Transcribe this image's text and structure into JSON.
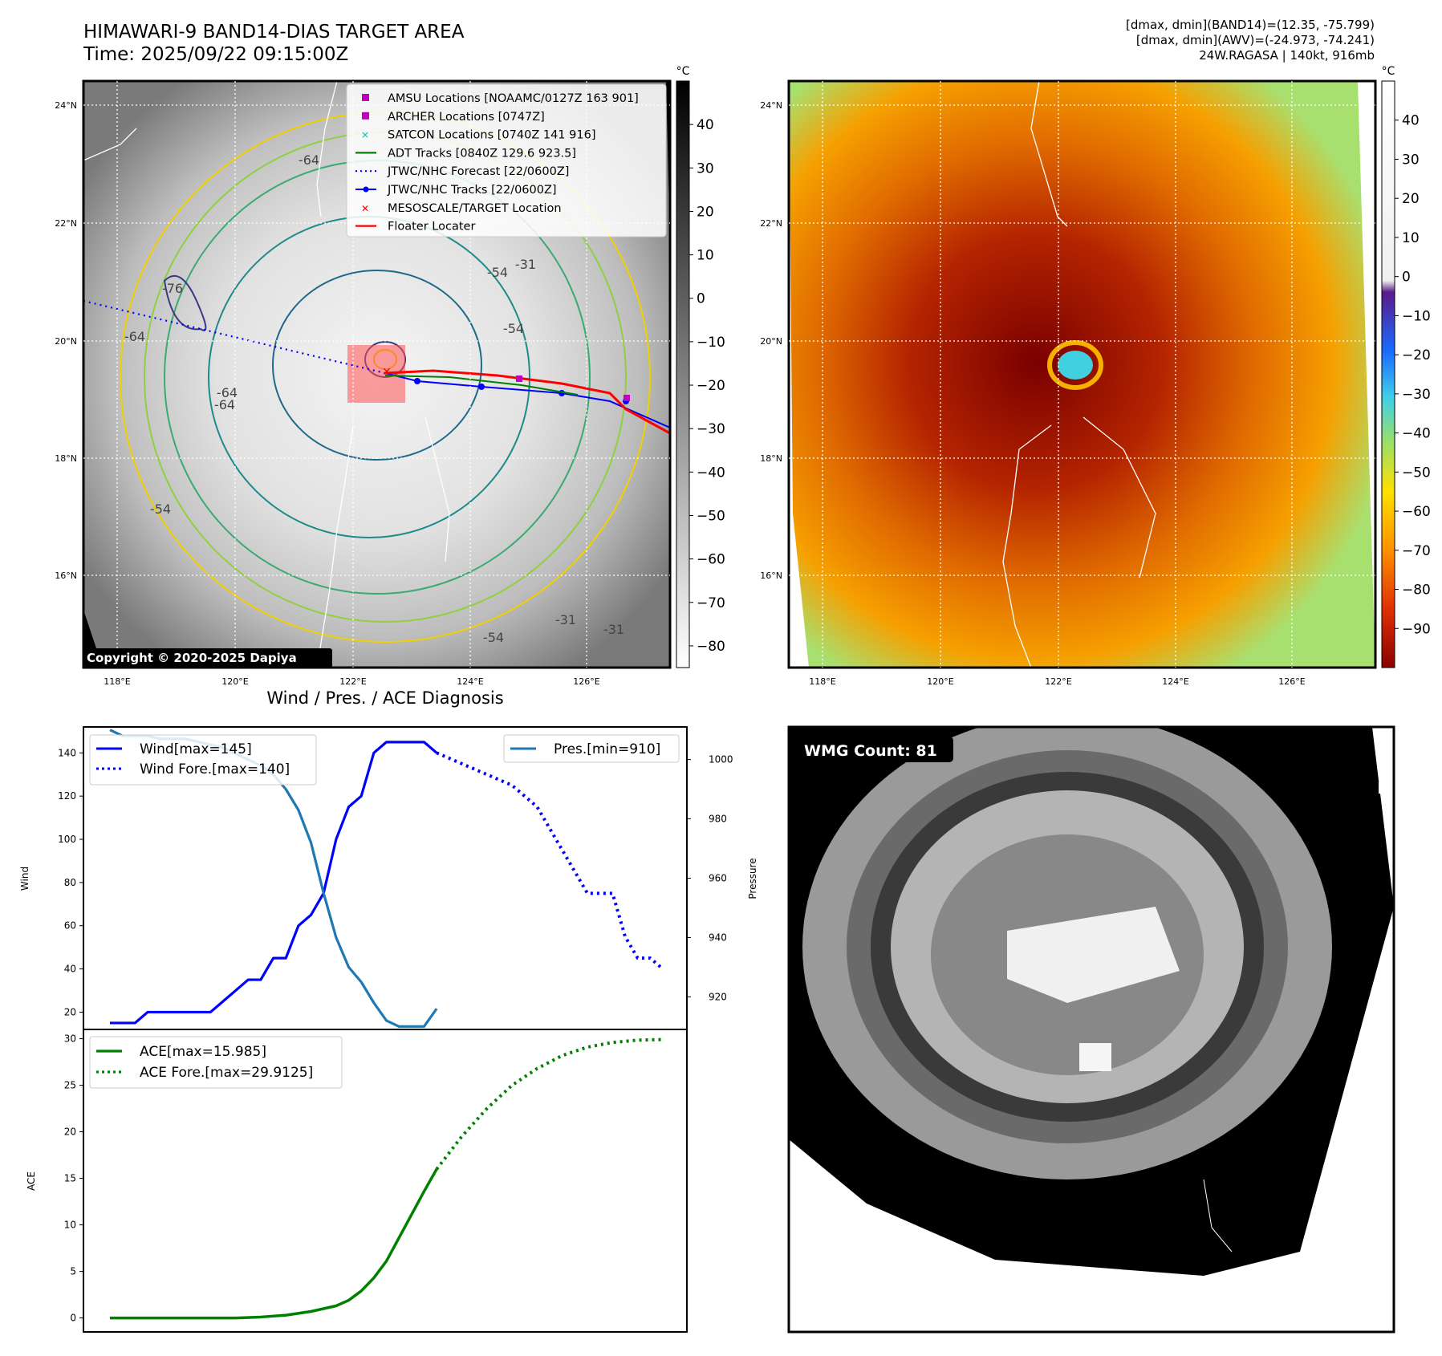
{
  "header": {
    "title_line1": "HIMAWARI-9 BAND14-DIAS TARGET AREA",
    "title_line2": "Time: 2025/09/22 09:15:00Z",
    "info_line1": "[dmax, dmin](BAND14)=(12.35, -75.799)",
    "info_line2": "[dmax, dmin](AWV)=(-24.973, -74.241)",
    "info_line3": "24W.RAGASA | 140kt, 916mb"
  },
  "map_axes": {
    "lat_ticks": [
      "24°N",
      "22°N",
      "20°N",
      "18°N",
      "16°N"
    ],
    "lon_ticks": [
      "118°E",
      "120°E",
      "122°E",
      "124°E",
      "126°E"
    ]
  },
  "map_left": {
    "legend": [
      {
        "label": "AMSU Locations [NOAAMC/0127Z 163 901]",
        "color": "#c000c0",
        "symbol": "square"
      },
      {
        "label": "ARCHER Locations [0747Z]",
        "color": "#c000c0",
        "symbol": "square"
      },
      {
        "label": "SATCON Locations [0740Z 141 916]",
        "color": "#20c0c0",
        "symbol": "x"
      },
      {
        "label": "ADT Tracks [0840Z 129.6 923.5]",
        "color": "#008000",
        "symbol": "line"
      },
      {
        "label": "JTWC/NHC Forecast [22/0600Z]",
        "color": "#0000ff",
        "symbol": "dotted"
      },
      {
        "label": "JTWC/NHC Tracks [22/0600Z]",
        "color": "#0000ff",
        "symbol": "line-dot"
      },
      {
        "label": "MESOSCALE/TARGET Location",
        "color": "#ff0000",
        "symbol": "x"
      },
      {
        "label": "Floater Locater",
        "color": "#ff0000",
        "symbol": "line"
      }
    ],
    "contour_labels": [
      "-76",
      "-64",
      "-64",
      "-64",
      "-54",
      "-54",
      "-54",
      "-54",
      "-31",
      "-31",
      "-31",
      "-64"
    ],
    "copyright": "Copyright © 2020-2025 Dapiya",
    "colorbar": {
      "unit": "°C",
      "ticks": [
        "40",
        "30",
        "20",
        "10",
        "0",
        "−10",
        "−20",
        "−30",
        "−40",
        "−50",
        "−60",
        "−70",
        "−80"
      ]
    }
  },
  "map_right": {
    "colorbar": {
      "unit": "°C",
      "ticks": [
        "40",
        "30",
        "20",
        "10",
        "0",
        "−10",
        "−20",
        "−30",
        "−40",
        "−50",
        "−60",
        "−70",
        "−80",
        "−90"
      ]
    }
  },
  "wmg": {
    "label": "WMG Count: 81"
  },
  "diagnosis_title": "Wind / Pres. / ACE Diagnosis",
  "chart_data": [
    {
      "type": "line",
      "title": "Wind / Pres. / ACE Diagnosis",
      "ylabel": "Wind",
      "ylabel_right": "Pressure",
      "ylim": [
        12,
        152
      ],
      "ylim_right": [
        909,
        1011
      ],
      "yticks": [
        20,
        40,
        60,
        80,
        100,
        120,
        140
      ],
      "yticks_right": [
        920,
        940,
        960,
        980,
        1000
      ],
      "x_range": [
        0,
        44
      ],
      "series": [
        {
          "name": "Wind[max=145]",
          "axis": "left",
          "style": "solid",
          "color": "#0000ff",
          "x": [
            0,
            1,
            2,
            3,
            4,
            5,
            6,
            7,
            8,
            9,
            10,
            11,
            12,
            13,
            14,
            15,
            16,
            17,
            18,
            19,
            20,
            21,
            22,
            23,
            24,
            25,
            26
          ],
          "values": [
            15,
            15,
            15,
            20,
            20,
            20,
            20,
            20,
            20,
            25,
            30,
            35,
            35,
            45,
            45,
            60,
            65,
            75,
            100,
            115,
            120,
            140,
            145,
            145,
            145,
            145,
            140
          ]
        },
        {
          "name": "Wind Fore.[max=140]",
          "axis": "left",
          "style": "dotted",
          "color": "#0000ff",
          "x": [
            26,
            28,
            30,
            32,
            34,
            35,
            36,
            37,
            38,
            39,
            40,
            41,
            42,
            43,
            44
          ],
          "values": [
            140,
            135,
            130,
            125,
            115,
            105,
            95,
            85,
            75,
            75,
            75,
            55,
            45,
            45,
            40
          ]
        },
        {
          "name": "Pres.[min=910]",
          "axis": "right",
          "style": "solid",
          "color": "#1f77b4",
          "x": [
            0,
            1,
            2,
            3,
            4,
            5,
            6,
            7,
            8,
            9,
            10,
            11,
            12,
            13,
            14,
            15,
            16,
            17,
            18,
            19,
            20,
            21,
            22,
            23,
            24,
            25,
            26
          ],
          "values": [
            1010,
            1008,
            1008,
            1008,
            1007,
            1007,
            1007,
            1006,
            1005,
            1004,
            1002,
            1000,
            998,
            995,
            990,
            983,
            972,
            955,
            940,
            930,
            925,
            918,
            912,
            910,
            910,
            910,
            916
          ]
        }
      ]
    },
    {
      "type": "line",
      "ylabel": "ACE",
      "ylim": [
        -1.5,
        31
      ],
      "yticks": [
        0,
        5,
        10,
        15,
        20,
        25,
        30
      ],
      "x_range": [
        0,
        44
      ],
      "series": [
        {
          "name": "ACE[max=15.985]",
          "style": "solid",
          "color": "#008000",
          "x": [
            0,
            2,
            4,
            6,
            8,
            10,
            12,
            14,
            16,
            18,
            19,
            20,
            21,
            22,
            23,
            24,
            25,
            26
          ],
          "values": [
            0,
            0,
            0,
            0,
            0,
            0,
            0.1,
            0.3,
            0.7,
            1.3,
            1.9,
            2.9,
            4.3,
            6.1,
            8.6,
            11.1,
            13.6,
            15.985
          ]
        },
        {
          "name": "ACE Fore.[max=29.9125]",
          "style": "dotted",
          "color": "#008000",
          "x": [
            26,
            28,
            30,
            32,
            34,
            36,
            38,
            40,
            42,
            44
          ],
          "values": [
            15.985,
            19.5,
            22.5,
            25,
            26.8,
            28.2,
            29.1,
            29.6,
            29.85,
            29.9125
          ]
        }
      ]
    }
  ]
}
